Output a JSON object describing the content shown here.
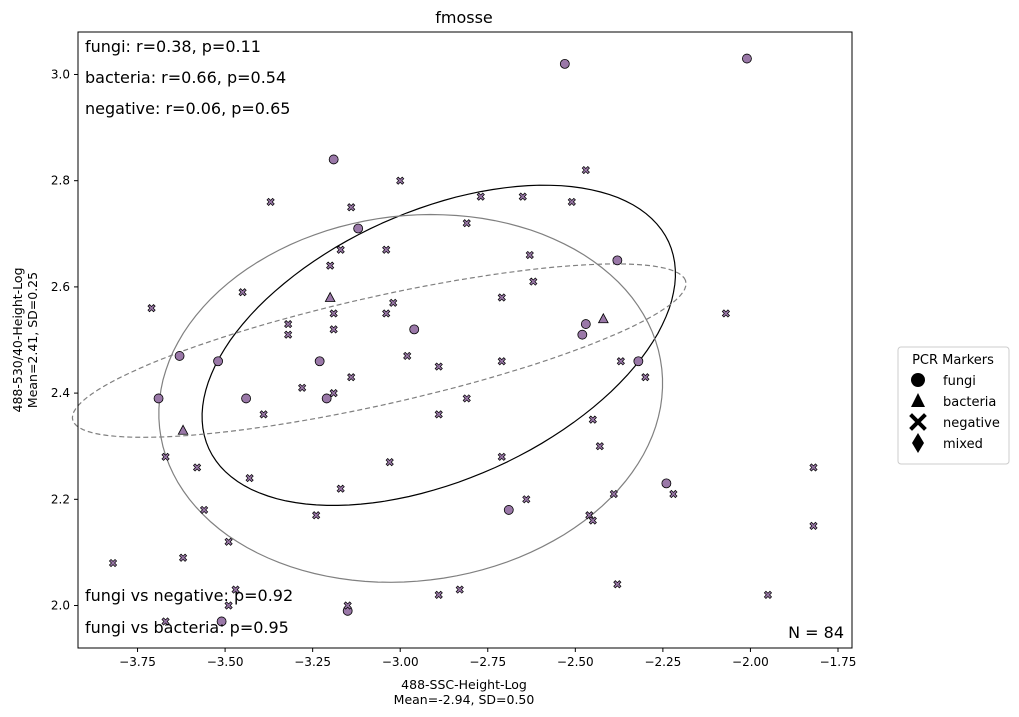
{
  "chart_data": {
    "type": "scatter",
    "title": "fmosse",
    "xlabel_line1": "488-SSC-Height-Log",
    "xlabel_line2": "Mean=-2.94, SD=0.50",
    "ylabel_line1": "488-530/40-Height-Log",
    "ylabel_line2": "Mean=2.41, SD=0.25",
    "xlim": [
      -3.92,
      -1.71
    ],
    "ylim": [
      1.92,
      3.08
    ],
    "xticks": [
      -3.75,
      -3.5,
      -3.25,
      -3.0,
      -2.75,
      -2.5,
      -2.25,
      -2.0,
      -1.75
    ],
    "xtick_labels": [
      "−3.75",
      "−3.50",
      "−3.25",
      "−3.00",
      "−2.75",
      "−2.50",
      "−2.25",
      "−2.00",
      "−1.75"
    ],
    "yticks": [
      2.0,
      2.2,
      2.4,
      2.6,
      2.8,
      3.0
    ],
    "ytick_labels": [
      "2.0",
      "2.2",
      "2.4",
      "2.6",
      "2.8",
      "3.0"
    ],
    "marker_color": "#9a78a8",
    "marker_edge": "#000000",
    "annotations_top": [
      "fungi: r=0.38, p=0.11",
      "bacteria: r=0.66, p=0.54",
      "negative: r=0.06, p=0.65"
    ],
    "annotations_bottom": [
      "fungi vs negative: p=0.92",
      "fungi vs bacteria: p=0.95"
    ],
    "n_label": "N = 84",
    "legend": {
      "title": "PCR Markers",
      "placement": "right-outside",
      "items": [
        {
          "label": "fungi",
          "marker": "circle"
        },
        {
          "label": "bacteria",
          "marker": "triangle"
        },
        {
          "label": "negative",
          "marker": "x"
        },
        {
          "label": "mixed",
          "marker": "diamond"
        }
      ]
    },
    "ellipses": [
      {
        "group": "fungi",
        "cx": -2.89,
        "cy": 2.49,
        "rx_angle_deg": 30,
        "color": "#000000",
        "dash": false,
        "a": 0.76,
        "b": 0.24
      },
      {
        "group": "bacteria",
        "cx": -3.06,
        "cy": 2.48,
        "color": "#808080",
        "dash": true,
        "a": 0.91,
        "b": 0.1
      },
      {
        "group": "negative",
        "cx": -2.97,
        "cy": 2.39,
        "color": "#808080",
        "dash": false,
        "a": 0.73,
        "b": 0.34
      }
    ],
    "series": [
      {
        "name": "fungi",
        "marker": "circle",
        "points": [
          [
            -2.53,
            3.02
          ],
          [
            -2.01,
            3.03
          ],
          [
            -3.19,
            2.84
          ],
          [
            -3.12,
            2.71
          ],
          [
            -2.38,
            2.65
          ],
          [
            -2.47,
            2.53
          ],
          [
            -2.48,
            2.51
          ],
          [
            -2.96,
            2.52
          ],
          [
            -3.23,
            2.46
          ],
          [
            -3.63,
            2.47
          ],
          [
            -3.52,
            2.46
          ],
          [
            -2.32,
            2.46
          ],
          [
            -3.69,
            2.39
          ],
          [
            -3.44,
            2.39
          ],
          [
            -3.21,
            2.39
          ],
          [
            -2.24,
            2.23
          ],
          [
            -2.69,
            2.18
          ],
          [
            -3.51,
            1.97
          ],
          [
            -3.15,
            1.99
          ]
        ]
      },
      {
        "name": "bacteria",
        "marker": "triangle",
        "points": [
          [
            -3.2,
            2.58
          ],
          [
            -2.42,
            2.54
          ],
          [
            -3.62,
            2.33
          ]
        ]
      },
      {
        "name": "negative",
        "marker": "x",
        "points": [
          [
            -2.47,
            2.82
          ],
          [
            -3.0,
            2.8
          ],
          [
            -2.77,
            2.77
          ],
          [
            -2.65,
            2.77
          ],
          [
            -2.51,
            2.76
          ],
          [
            -3.37,
            2.76
          ],
          [
            -3.14,
            2.75
          ],
          [
            -2.81,
            2.72
          ],
          [
            -3.04,
            2.67
          ],
          [
            -3.17,
            2.67
          ],
          [
            -2.63,
            2.66
          ],
          [
            -3.2,
            2.64
          ],
          [
            -2.62,
            2.61
          ],
          [
            -3.45,
            2.59
          ],
          [
            -2.71,
            2.58
          ],
          [
            -3.02,
            2.57
          ],
          [
            -3.71,
            2.56
          ],
          [
            -3.04,
            2.55
          ],
          [
            -3.19,
            2.55
          ],
          [
            -2.07,
            2.55
          ],
          [
            -3.32,
            2.53
          ],
          [
            -3.19,
            2.52
          ],
          [
            -3.32,
            2.51
          ],
          [
            -2.98,
            2.47
          ],
          [
            -2.71,
            2.46
          ],
          [
            -2.37,
            2.46
          ],
          [
            -2.89,
            2.45
          ],
          [
            -3.14,
            2.43
          ],
          [
            -2.3,
            2.43
          ],
          [
            -3.28,
            2.41
          ],
          [
            -3.19,
            2.4
          ],
          [
            -2.81,
            2.39
          ],
          [
            -3.39,
            2.36
          ],
          [
            -2.89,
            2.36
          ],
          [
            -2.45,
            2.35
          ],
          [
            -2.43,
            2.3
          ],
          [
            -3.67,
            2.28
          ],
          [
            -3.03,
            2.27
          ],
          [
            -2.71,
            2.28
          ],
          [
            -3.58,
            2.26
          ],
          [
            -3.43,
            2.24
          ],
          [
            -3.17,
            2.22
          ],
          [
            -2.39,
            2.21
          ],
          [
            -2.64,
            2.2
          ],
          [
            -2.22,
            2.21
          ],
          [
            -3.56,
            2.18
          ],
          [
            -3.24,
            2.17
          ],
          [
            -2.46,
            2.17
          ],
          [
            -2.45,
            2.16
          ],
          [
            -1.82,
            2.26
          ],
          [
            -1.82,
            2.15
          ],
          [
            -3.49,
            2.12
          ],
          [
            -3.62,
            2.09
          ],
          [
            -3.82,
            2.08
          ],
          [
            -2.38,
            2.04
          ],
          [
            -2.83,
            2.03
          ],
          [
            -3.47,
            2.03
          ],
          [
            -2.89,
            2.02
          ],
          [
            -1.95,
            2.02
          ],
          [
            -3.49,
            2.0
          ],
          [
            -3.15,
            2.0
          ],
          [
            -3.67,
            1.97
          ]
        ]
      }
    ]
  }
}
